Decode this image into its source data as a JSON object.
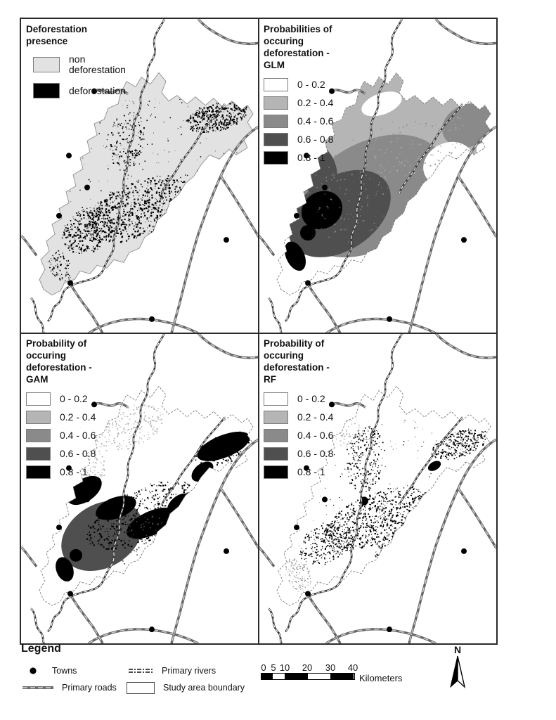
{
  "panels": [
    {
      "id": "presence",
      "title_lines": [
        "Deforestation presence"
      ],
      "classes": [
        {
          "label": "non deforestation",
          "color": "#e2e2e2"
        },
        {
          "label": "deforestation",
          "color": "#000000"
        }
      ]
    },
    {
      "id": "glm",
      "title_lines": [
        "Probabilities of",
        "occuring",
        "deforestation -",
        "GLM"
      ],
      "classes": [
        {
          "label": "0 - 0.2",
          "color": "#ffffff"
        },
        {
          "label": "0.2 - 0.4",
          "color": "#b5b5b5"
        },
        {
          "label": "0.4 - 0.6",
          "color": "#8a8a8a"
        },
        {
          "label": "0.6 - 0.8",
          "color": "#4f4f4f"
        },
        {
          "label": "0.8 - 1",
          "color": "#000000"
        }
      ]
    },
    {
      "id": "gam",
      "title_lines": [
        "Probability of",
        "occuring",
        "deforestation -",
        "GAM"
      ],
      "classes": [
        {
          "label": "0 - 0.2",
          "color": "#ffffff"
        },
        {
          "label": "0.2 - 0.4",
          "color": "#b5b5b5"
        },
        {
          "label": "0.4 - 0.6",
          "color": "#8a8a8a"
        },
        {
          "label": "0.6 - 0.8",
          "color": "#4f4f4f"
        },
        {
          "label": "0.8 - 1",
          "color": "#000000"
        }
      ]
    },
    {
      "id": "rf",
      "title_lines": [
        "Probability of",
        "occuring",
        "deforestation -",
        "RF"
      ],
      "classes": [
        {
          "label": "0 - 0.2",
          "color": "#ffffff"
        },
        {
          "label": "0.2 - 0.4",
          "color": "#b5b5b5"
        },
        {
          "label": "0.4 - 0.6",
          "color": "#8a8a8a"
        },
        {
          "label": "0.6 - 0.8",
          "color": "#4f4f4f"
        },
        {
          "label": "0.8 - 1",
          "color": "#000000"
        }
      ]
    }
  ],
  "map_legend": {
    "heading": "Legend",
    "items": [
      {
        "symbol": "town-dot",
        "label": "Towns"
      },
      {
        "symbol": "primary-river-line",
        "label": "Primary rivers"
      },
      {
        "symbol": "primary-road-line",
        "label": "Primary roads"
      },
      {
        "symbol": "study-area-box",
        "label": "Study area boundary"
      }
    ]
  },
  "scale_bar": {
    "tick_labels": [
      "0",
      "5",
      "10",
      "20",
      "30",
      "40"
    ],
    "tick_km": [
      0,
      5,
      10,
      20,
      30,
      40
    ],
    "total_km": 40,
    "unit_label": "Kilometers"
  },
  "north_arrow_label": "N",
  "symbology_colors": {
    "town": "#000000",
    "river": "#3a3a3a",
    "road": "#666666",
    "study_fill": "#e2e2e2",
    "boundary": "#6e6e6e"
  }
}
